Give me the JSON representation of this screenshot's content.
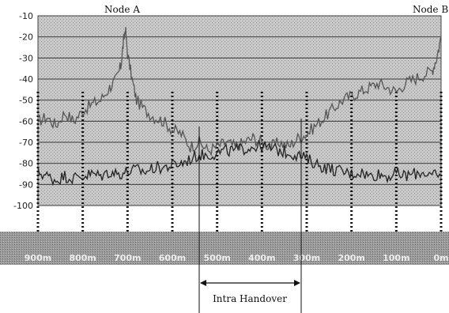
{
  "chart_data": {
    "type": "line",
    "title": "",
    "xlabel": "",
    "ylabel": "",
    "ylim": [
      -100,
      -10
    ],
    "yticks": [
      -10,
      -20,
      -30,
      -40,
      -50,
      -60,
      -70,
      -80,
      -90,
      -100
    ],
    "grid": true,
    "node_labels": {
      "left": "Node A",
      "right": "Node B"
    },
    "distance_ticks": [
      "900m",
      "800m",
      "700m",
      "600m",
      "500m",
      "400m",
      "300m",
      "200m",
      "100m",
      "0m"
    ],
    "handover_label": "Intra Handover",
    "series": [
      {
        "color": "#555555",
        "x": [
          900,
          880,
          860,
          840,
          820,
          800,
          780,
          760,
          740,
          725,
          715,
          710,
          705,
          700,
          690,
          680,
          660,
          640,
          620,
          600,
          580,
          560,
          540,
          520,
          500,
          480,
          460,
          440,
          420,
          400,
          380,
          360,
          340,
          320,
          300,
          280,
          260,
          240,
          220,
          200,
          180,
          160,
          140,
          120,
          100,
          80,
          60,
          40,
          20,
          10,
          0
        ],
        "values": [
          -60,
          -58,
          -62,
          -56,
          -60,
          -55,
          -52,
          -50,
          -44,
          -40,
          -34,
          -24,
          -16,
          -28,
          -40,
          -50,
          -55,
          -58,
          -60,
          -64,
          -66,
          -72,
          -70,
          -74,
          -72,
          -70,
          -72,
          -70,
          -68,
          -70,
          -72,
          -70,
          -72,
          -68,
          -66,
          -62,
          -58,
          -54,
          -50,
          -48,
          -46,
          -44,
          -42,
          -44,
          -46,
          -42,
          -40,
          -38,
          -36,
          -30,
          -20
        ]
      },
      {
        "color": "#222222",
        "x": [
          900,
          880,
          860,
          840,
          820,
          800,
          780,
          760,
          740,
          720,
          700,
          680,
          660,
          640,
          620,
          600,
          580,
          560,
          540,
          520,
          500,
          480,
          460,
          440,
          420,
          400,
          380,
          360,
          340,
          320,
          300,
          280,
          260,
          240,
          220,
          200,
          180,
          160,
          140,
          120,
          100,
          80,
          60,
          40,
          20,
          0
        ],
        "values": [
          -84,
          -86,
          -88,
          -86,
          -87,
          -86,
          -85,
          -86,
          -84,
          -85,
          -84,
          -83,
          -84,
          -82,
          -82,
          -81,
          -80,
          -78,
          -76,
          -76,
          -75,
          -74,
          -74,
          -73,
          -72,
          -72,
          -73,
          -74,
          -75,
          -76,
          -78,
          -80,
          -82,
          -83,
          -84,
          -85,
          -84,
          -86,
          -85,
          -86,
          -85,
          -86,
          -85,
          -84,
          -86,
          -86
        ]
      }
    ]
  }
}
